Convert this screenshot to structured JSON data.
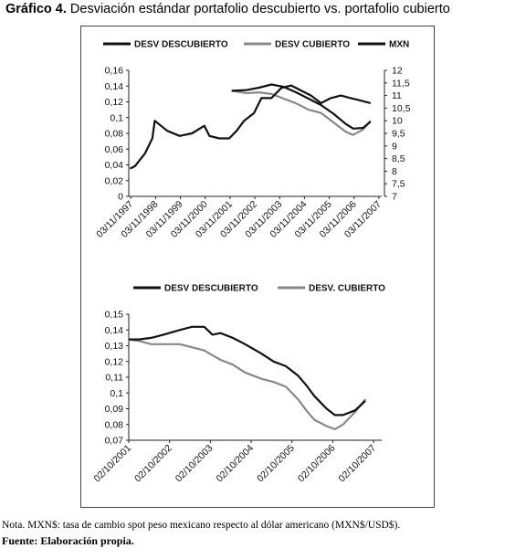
{
  "figure": {
    "title_bold": "Gráfico 4.",
    "title_rest": " Desviación estándar portafolio descubierto vs. portafolio cubierto",
    "note": "Nota. MXN$: tasa de cambio spot peso mexicano respecto al dólar americano (MXN$/USD$).",
    "source": "Fuente: Elaboración propia."
  },
  "chart_data": [
    {
      "type": "line",
      "title": "",
      "ylim": [
        0,
        0.16
      ],
      "y2lim": [
        7,
        12
      ],
      "yticks": [
        "0",
        "0,02",
        "0,04",
        "0,06",
        "0,08",
        "0,1",
        "0,12",
        "0,14",
        "0,16"
      ],
      "y2ticks": [
        "7",
        "7,5",
        "8",
        "8,5",
        "9",
        "9,5",
        "10",
        "10,5",
        "11",
        "11,5",
        "12"
      ],
      "xticks": [
        "03/11/1997",
        "03/11/1998",
        "03/11/1999",
        "03/11/2000",
        "03/11/2001",
        "03/11/2002",
        "03/11/2003",
        "03/11/2004",
        "03/11/2005",
        "03/11/2006",
        "03/11/2007"
      ],
      "legend_position": "top",
      "series": [
        {
          "name": "DESV DESCUBIERTO",
          "axis": "left",
          "color": "#111111",
          "x": [
            2001.9,
            2002.5,
            2003.0,
            2003.5,
            2004.0,
            2004.5,
            2005.0,
            2005.5,
            2006.0,
            2006.5,
            2006.8,
            2007.2,
            2007.5
          ],
          "y": [
            0.134,
            0.135,
            0.138,
            0.142,
            0.139,
            0.132,
            0.124,
            0.116,
            0.105,
            0.092,
            0.086,
            0.087,
            0.095
          ]
        },
        {
          "name": "DESV CUBIERTO",
          "axis": "left",
          "color": "#888888",
          "x": [
            2001.9,
            2002.5,
            2003.0,
            2003.5,
            2004.0,
            2004.5,
            2005.0,
            2005.5,
            2006.0,
            2006.5,
            2006.8,
            2007.2,
            2007.5
          ],
          "y": [
            0.134,
            0.131,
            0.132,
            0.13,
            0.124,
            0.118,
            0.11,
            0.106,
            0.094,
            0.082,
            0.078,
            0.085,
            0.096
          ]
        },
        {
          "name": "MXN",
          "axis": "right",
          "color": "#111111",
          "x": [
            1997.8,
            1998.0,
            1998.4,
            1998.7,
            1998.8,
            1999.3,
            1999.8,
            2000.3,
            2000.8,
            2001.0,
            2001.4,
            2001.8,
            2002.1,
            2002.4,
            2002.8,
            2003.1,
            2003.5,
            2003.9,
            2004.3,
            2004.7,
            2005.1,
            2005.5,
            2005.9,
            2006.3,
            2006.7,
            2007.1,
            2007.5
          ],
          "y": [
            8.1,
            8.2,
            8.7,
            9.3,
            10.0,
            9.6,
            9.4,
            9.5,
            9.8,
            9.4,
            9.3,
            9.3,
            9.6,
            10.0,
            10.3,
            10.9,
            10.9,
            11.3,
            11.4,
            11.2,
            11.0,
            10.7,
            10.9,
            11.0,
            10.9,
            10.8,
            10.7
          ]
        }
      ]
    },
    {
      "type": "line",
      "title": "",
      "ylim": [
        0.07,
        0.15
      ],
      "yticks": [
        "0,07",
        "0,08",
        "0,09",
        "0,1",
        "0,11",
        "0,12",
        "0,13",
        "0,14",
        "0,15"
      ],
      "xticks": [
        "02/10/2001",
        "02/10/2002",
        "02/10/2003",
        "02/10/2004",
        "02/10/2005",
        "02/10/2006",
        "02/10/2007"
      ],
      "legend_position": "top",
      "series": [
        {
          "name": "DESV DESCUBIERTO",
          "color": "#111111",
          "x": [
            2001.75,
            2002.0,
            2002.3,
            2002.6,
            2003.0,
            2003.3,
            2003.6,
            2003.8,
            2004.0,
            2004.3,
            2004.6,
            2005.0,
            2005.3,
            2005.6,
            2005.9,
            2006.1,
            2006.3,
            2006.6,
            2006.8,
            2007.0,
            2007.3,
            2007.55
          ],
          "y": [
            0.134,
            0.134,
            0.135,
            0.137,
            0.14,
            0.142,
            0.142,
            0.137,
            0.138,
            0.135,
            0.131,
            0.125,
            0.12,
            0.117,
            0.111,
            0.105,
            0.098,
            0.09,
            0.086,
            0.086,
            0.089,
            0.095
          ]
        },
        {
          "name": "DESV. CUBIERTO",
          "color": "#888888",
          "x": [
            2001.75,
            2002.0,
            2002.3,
            2002.6,
            2003.0,
            2003.3,
            2003.6,
            2003.8,
            2004.0,
            2004.3,
            2004.6,
            2005.0,
            2005.3,
            2005.6,
            2005.9,
            2006.1,
            2006.3,
            2006.6,
            2006.8,
            2007.0,
            2007.3,
            2007.55
          ],
          "y": [
            0.134,
            0.133,
            0.131,
            0.131,
            0.131,
            0.129,
            0.127,
            0.124,
            0.121,
            0.118,
            0.113,
            0.109,
            0.107,
            0.104,
            0.096,
            0.089,
            0.083,
            0.079,
            0.077,
            0.08,
            0.088,
            0.096
          ]
        }
      ]
    }
  ]
}
